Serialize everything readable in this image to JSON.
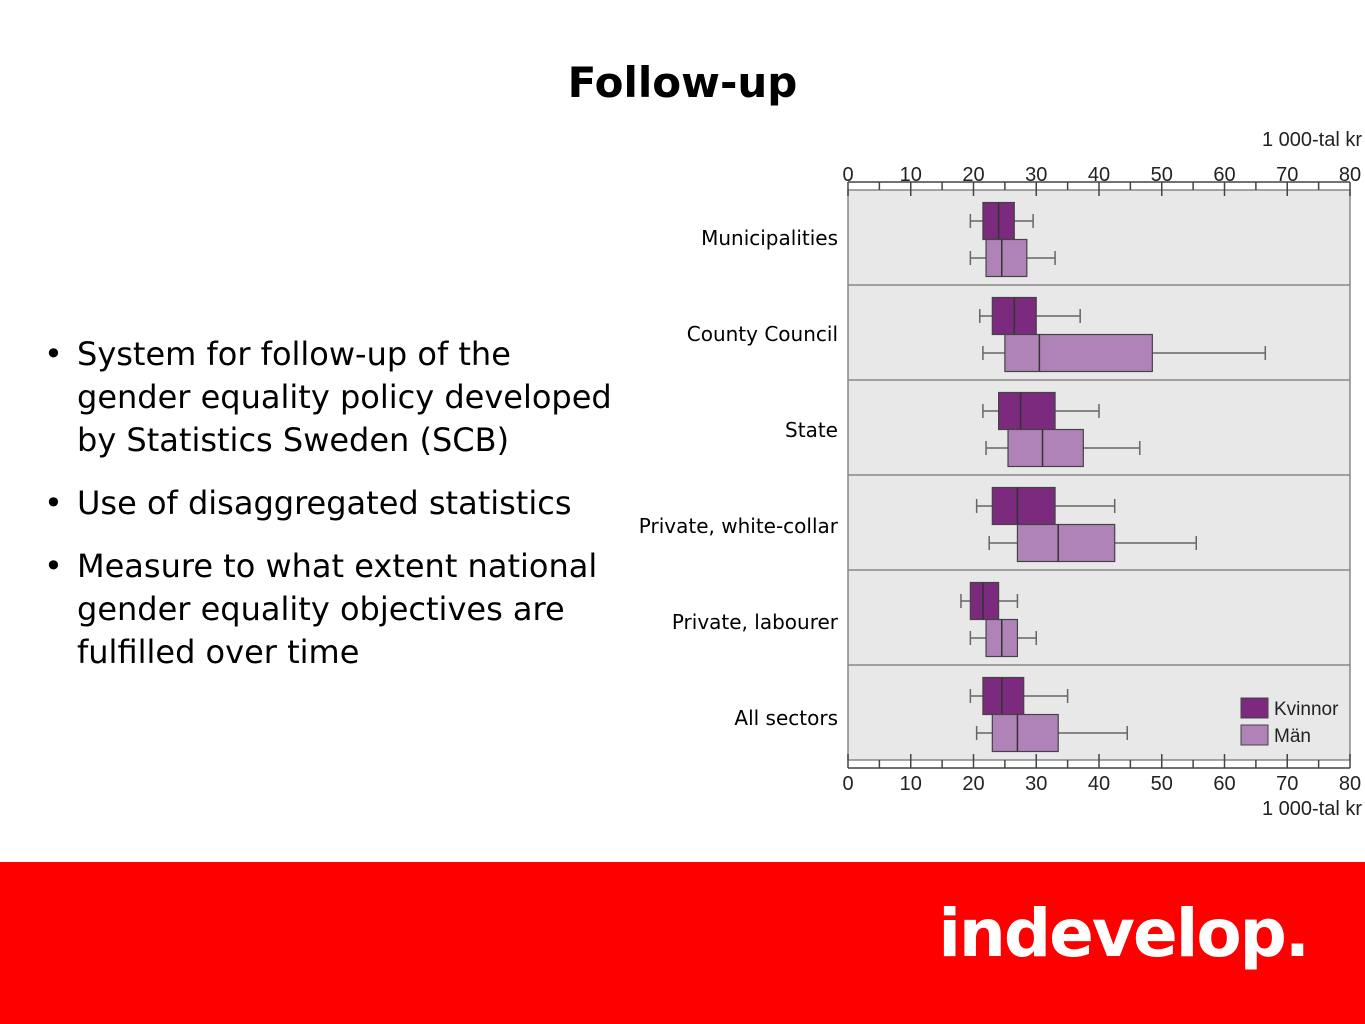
{
  "title": "Follow-up",
  "bullets": [
    "System for follow-up of the gender equality policy developed by Statistics Sweden (SCB)",
    "Use of disaggregated statistics",
    "Measure to what extent national gender equality objectives are fulfilled over time"
  ],
  "logo_text": "indevelop.",
  "colors": {
    "footer": "#ff0000",
    "kvinnor": "#7b2a7e",
    "man": "#b083b8",
    "plot_bg": "#e8e8e8"
  },
  "chart_data": {
    "type": "boxplot",
    "unit_label": "1 000-tal kr",
    "x_ticks": [
      0,
      10,
      20,
      30,
      40,
      50,
      60,
      70,
      80
    ],
    "xlim": [
      0,
      80
    ],
    "legend": [
      "Kvinnor",
      "Män"
    ],
    "legend_position": "bottom-right",
    "categories": [
      "Municipalities",
      "County Council",
      "State",
      "Private, white-collar",
      "Private, labourer",
      "All sectors"
    ],
    "series": [
      {
        "name": "Kvinnor",
        "boxes": [
          {
            "whisker_low": 19.5,
            "q1": 21.5,
            "median": 24,
            "q3": 26.5,
            "whisker_high": 29.5
          },
          {
            "whisker_low": 21,
            "q1": 23,
            "median": 26.5,
            "q3": 30,
            "whisker_high": 37
          },
          {
            "whisker_low": 21.5,
            "q1": 24,
            "median": 27.5,
            "q3": 33,
            "whisker_high": 40
          },
          {
            "whisker_low": 20.5,
            "q1": 23,
            "median": 27,
            "q3": 33,
            "whisker_high": 42.5
          },
          {
            "whisker_low": 18,
            "q1": 19.5,
            "median": 21.5,
            "q3": 24,
            "whisker_high": 27
          },
          {
            "whisker_low": 19.5,
            "q1": 21.5,
            "median": 24.5,
            "q3": 28,
            "whisker_high": 35
          }
        ]
      },
      {
        "name": "Män",
        "boxes": [
          {
            "whisker_low": 19.5,
            "q1": 22,
            "median": 24.5,
            "q3": 28.5,
            "whisker_high": 33
          },
          {
            "whisker_low": 21.5,
            "q1": 25,
            "median": 30.5,
            "q3": 48.5,
            "whisker_high": 66.5
          },
          {
            "whisker_low": 22,
            "q1": 25.5,
            "median": 31,
            "q3": 37.5,
            "whisker_high": 46.5
          },
          {
            "whisker_low": 22.5,
            "q1": 27,
            "median": 33.5,
            "q3": 42.5,
            "whisker_high": 55.5
          },
          {
            "whisker_low": 19.5,
            "q1": 22,
            "median": 24.5,
            "q3": 27,
            "whisker_high": 30
          },
          {
            "whisker_low": 20.5,
            "q1": 23,
            "median": 27,
            "q3": 33.5,
            "whisker_high": 44.5
          }
        ]
      }
    ]
  }
}
